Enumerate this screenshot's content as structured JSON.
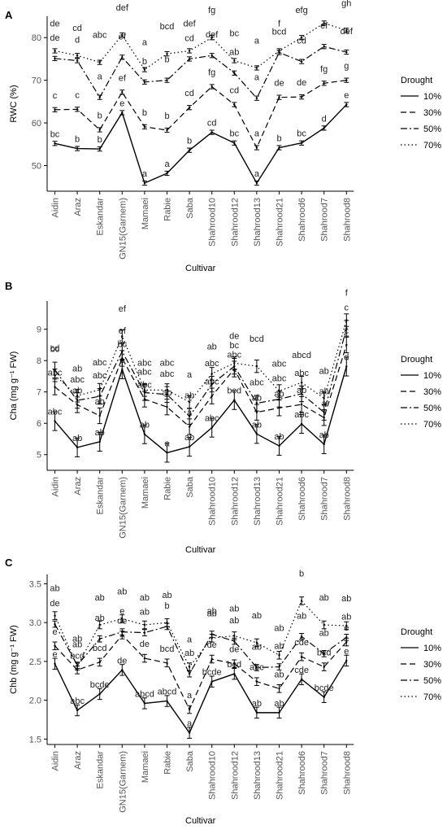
{
  "legend": {
    "title": "Drought",
    "levels": [
      "10%",
      "30%",
      "50%",
      "70%"
    ],
    "dashes": [
      "",
      "7,4",
      "8,3,2,3",
      "1.5,3"
    ]
  },
  "chart_data": [
    {
      "type": "line",
      "panel_label": "A",
      "xlabel": "Cultivar",
      "ylabel": "RWC (%)",
      "ylim": [
        44,
        85
      ],
      "yticks": [
        50,
        60,
        70,
        80
      ],
      "categories": [
        "Aidin",
        "Araz",
        "Eskandar",
        "GN15(Garnem)",
        "Mamaei",
        "Rabie",
        "Saba",
        "Shahrood10",
        "Shahrood12",
        "Shahrood13",
        "Shahrood21",
        "Shahrood6",
        "Shahrood7",
        "Shahrood8"
      ],
      "series": [
        {
          "name": "10%",
          "values": [
            55.2,
            54.0,
            53.9,
            62.4,
            45.9,
            48.2,
            53.6,
            57.8,
            55.3,
            45.9,
            54.2,
            55.3,
            58.8,
            64.3
          ],
          "err": 0.5,
          "letters": [
            "bc",
            "b",
            "b",
            "e",
            "a",
            "a",
            "b",
            "cd",
            "bc",
            "a",
            "b",
            "bc",
            "d",
            "e"
          ]
        },
        {
          "name": "30%",
          "values": [
            63.1,
            63.2,
            58.4,
            67.2,
            59.1,
            58.3,
            63.6,
            68.5,
            64.3,
            54.2,
            66.0,
            66.1,
            69.3,
            70.0
          ],
          "err": 0.5,
          "letters": [
            "c",
            "c",
            "b",
            "ef",
            "b",
            "b",
            "cd",
            "fg",
            "cd",
            "a",
            "de",
            "de",
            "fg",
            "g"
          ]
        },
        {
          "name": "50%",
          "values": [
            75.1,
            74.6,
            66.0,
            75.4,
            69.6,
            70.0,
            75.0,
            75.8,
            71.7,
            65.8,
            76.5,
            74.4,
            77.9,
            76.6
          ],
          "err": 0.5,
          "letters": [
            "de",
            "d",
            "a",
            "ef",
            "b",
            "b",
            "cd",
            "def",
            "ab",
            "a",
            "bcd",
            "cd",
            "ef",
            "def"
          ]
        },
        {
          "name": "70%",
          "values": [
            76.9,
            75.8,
            74.2,
            80.6,
            72.5,
            76.2,
            76.9,
            80.0,
            74.6,
            72.9,
            76.9,
            80.0,
            83.4,
            81.7
          ],
          "err": 0.5,
          "letters": [
            "de",
            "cd",
            "abc",
            "def",
            "a",
            "bcd",
            "def",
            "fg",
            "bc",
            "a",
            "f",
            "efg",
            "h",
            "gh"
          ]
        }
      ]
    },
    {
      "type": "line",
      "panel_label": "B",
      "xlabel": "Cultivar",
      "ylabel": "Cha (mg g⁻¹ FW)",
      "ylim": [
        4.5,
        9.9
      ],
      "yticks": [
        5,
        6,
        7,
        8,
        9
      ],
      "categories": [
        "Aidin",
        "Araz",
        "Eskandar",
        "GN15(Garnem)",
        "Mamaei",
        "Rabie",
        "Saba",
        "Shahrood10",
        "Shahrood12",
        "Shahrood13",
        "Shahrood21",
        "Shahrood6",
        "Shahrood7",
        "Shahrood8"
      ],
      "series": [
        {
          "name": "10%",
          "values": [
            6.07,
            5.23,
            5.41,
            7.72,
            5.65,
            5.06,
            5.25,
            5.86,
            6.74,
            5.66,
            5.28,
            5.98,
            5.33,
            7.81
          ],
          "err": 0.3,
          "letters": [
            "abc",
            "ab",
            "ab",
            "e",
            "ab",
            "a",
            "ab",
            "abc",
            "bcd",
            "ab",
            "ab",
            "abc",
            "ab",
            "d"
          ]
        },
        {
          "name": "30%",
          "values": [
            7.16,
            6.59,
            6.24,
            8.07,
            6.77,
            6.52,
            5.89,
            6.87,
            7.73,
            6.35,
            6.49,
            6.6,
            6.18,
            8.5
          ],
          "err": 0.25,
          "letters": [
            "abc",
            "ab",
            "ab",
            "bc",
            "abc",
            "ab",
            "a",
            "abc",
            "abc",
            "ab",
            "ab",
            "ab",
            "a",
            "c"
          ]
        },
        {
          "name": "50%",
          "values": [
            7.7,
            6.73,
            6.86,
            8.29,
            6.98,
            6.92,
            6.22,
            7.25,
            7.82,
            6.64,
            6.77,
            6.94,
            6.35,
            9.03
          ],
          "err": 0.25,
          "letters": [
            "bc",
            "abc",
            "abc",
            "ef",
            "abc",
            "abc",
            "ab",
            "abc",
            "bc",
            "abc",
            "abc",
            "abc",
            "ab",
            "c"
          ]
        },
        {
          "name": "70%",
          "values": [
            7.53,
            6.88,
            7.07,
            8.78,
            7.06,
            7.06,
            6.68,
            7.58,
            7.92,
            7.82,
            7.03,
            7.3,
            6.8,
            9.29
          ],
          "err": 0.2,
          "letters": [
            "cd",
            "ab",
            "abc",
            "ef",
            "abc",
            "abc",
            "a",
            "ab",
            "de",
            "bcd",
            "abc",
            "abcd",
            "ab",
            "f"
          ]
        }
      ]
    },
    {
      "type": "line",
      "panel_label": "C",
      "xlabel": "Cultivar",
      "ylabel": "Chb (mg g⁻¹ FW)",
      "ylim": [
        1.43,
        3.62
      ],
      "yticks": [
        1.5,
        2.0,
        2.5,
        3.0,
        3.5
      ],
      "categories": [
        "Aidin",
        "Araz",
        "Eskandar",
        "GN15(Garnem)",
        "Mamaei",
        "Rabie",
        "Saba",
        "Shahrood10",
        "Shahrood12",
        "Shahrood13",
        "Shahrood21",
        "Shahrood6",
        "Shahrood7",
        "Shahrood8"
      ],
      "series": [
        {
          "name": "10%",
          "values": [
            2.47,
            1.87,
            2.08,
            2.39,
            1.96,
            1.99,
            1.58,
            2.24,
            2.34,
            1.84,
            1.84,
            2.27,
            2.04,
            2.51
          ],
          "err": 0.07,
          "letters": [
            "e",
            "abc",
            "bcde",
            "de",
            "abcd",
            "abcd",
            "a",
            "bcde",
            "bcd",
            "ab",
            "ab",
            "cde",
            "bcde",
            "e"
          ]
        },
        {
          "name": "30%",
          "values": [
            2.7,
            2.39,
            2.49,
            2.84,
            2.54,
            2.48,
            1.88,
            2.53,
            2.47,
            2.24,
            2.15,
            2.56,
            2.43,
            2.75
          ],
          "err": 0.05,
          "letters": [
            "e",
            "bcd",
            "bcd",
            "de",
            "de",
            "bcd",
            "a",
            "de",
            "de",
            "abc",
            "ab",
            "cde",
            "bcd",
            "e"
          ]
        },
        {
          "name": "50%",
          "values": [
            2.98,
            2.45,
            2.79,
            2.88,
            2.87,
            2.95,
            2.34,
            2.85,
            2.76,
            2.42,
            2.43,
            2.82,
            2.6,
            2.81
          ],
          "err": 0.04,
          "letters": [
            "de",
            "ab",
            "ab",
            "e",
            "ab",
            "b",
            "ab",
            "ab",
            "ab",
            "ab",
            "ab",
            "ab",
            "ab",
            "ab"
          ]
        },
        {
          "name": "70%",
          "values": [
            3.09,
            2.44,
            2.97,
            3.05,
            2.97,
            3.0,
            2.43,
            2.8,
            2.83,
            2.74,
            2.58,
            3.28,
            2.97,
            2.96
          ],
          "err": 0.05,
          "letters": [
            "ab",
            "ab",
            "ab",
            "ab",
            "ab",
            "ab",
            "a",
            "ab",
            "ab",
            "ab",
            "ab",
            "b",
            "ab",
            "ab"
          ]
        }
      ]
    }
  ]
}
